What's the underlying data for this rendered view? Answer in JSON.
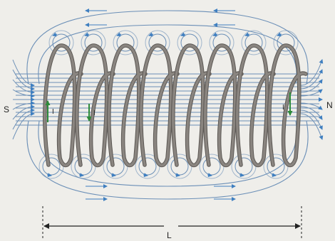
{
  "labels": {
    "south_pole": "S",
    "north_pole": "N",
    "current_left_1": "I",
    "current_left_2": "I",
    "current_right": "I",
    "length": "L"
  },
  "colors": {
    "background": "#efeeea",
    "coil": "#8a8580",
    "coil_edge": "#5c5854",
    "field_line": "#6b8fb7",
    "field_arrow": "#3f7fc0",
    "current_arrow": "#2e8b3a",
    "ink": "#222222"
  },
  "diagram": {
    "turn_count": 8,
    "internal_field_line_count": 13
  }
}
